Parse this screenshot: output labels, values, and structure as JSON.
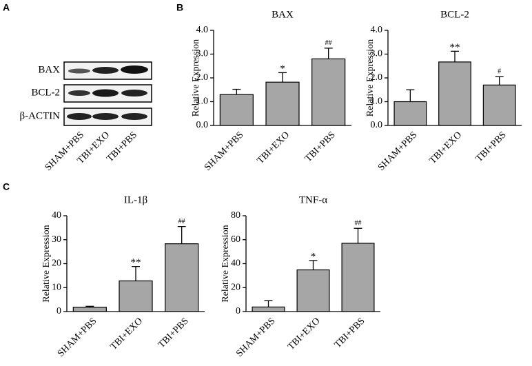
{
  "panels": [
    "A",
    "B",
    "C"
  ],
  "blot": {
    "rows": [
      "BAX",
      "BCL-2",
      "β-ACTIN"
    ],
    "lanes": [
      "SHAM+PBS",
      "TBI+EXO",
      "TBI+PBS"
    ]
  },
  "chart_data": [
    {
      "type": "bar",
      "title": "BAX",
      "y_label": "Relative Expression",
      "categories": [
        "SHAM+PBS",
        "TBI+EXO",
        "TBI+PBS"
      ],
      "values": [
        1.3,
        1.82,
        2.8
      ],
      "errors": [
        0.22,
        0.4,
        0.45
      ],
      "value_annotations": [
        null,
        "*",
        "##"
      ],
      "color": "#a6a6a6",
      "ylim": [
        0,
        4
      ],
      "yticks": [
        {
          "value": 0,
          "label": "0.0"
        },
        {
          "value": 1,
          "label": "1.0"
        },
        {
          "value": 2,
          "label": "2.0"
        },
        {
          "value": 3,
          "label": "3.0"
        },
        {
          "value": 4,
          "label": "4.0"
        }
      ]
    },
    {
      "type": "bar",
      "title": "BCL-2",
      "y_label": "Relative Expression",
      "categories": [
        "SHAM+PBS",
        "TBI+EXO",
        "TBI+PBS"
      ],
      "values": [
        1.0,
        2.67,
        1.7
      ],
      "errors": [
        0.5,
        0.45,
        0.35
      ],
      "value_annotations": [
        null,
        "**",
        "#"
      ],
      "color": "#a6a6a6",
      "ylim": [
        0,
        4
      ],
      "yticks": [
        {
          "value": 0,
          "label": "0.0"
        },
        {
          "value": 1,
          "label": "1.0"
        },
        {
          "value": 2,
          "label": "2.0"
        },
        {
          "value": 3,
          "label": "3.0"
        },
        {
          "value": 4,
          "label": "4.0"
        }
      ]
    },
    {
      "type": "bar",
      "title": "IL-1β",
      "y_label": "Relative Expression",
      "categories": [
        "SHAM+PBS",
        "TBI+EXO",
        "TBI+PBS"
      ],
      "values": [
        1.8,
        12.8,
        28.3
      ],
      "errors": [
        0.4,
        6,
        7.2
      ],
      "value_annotations": [
        null,
        "**",
        "##"
      ],
      "color": "#a6a6a6",
      "ylim": [
        0,
        40
      ],
      "yticks": [
        0,
        10,
        20,
        30,
        40
      ]
    },
    {
      "type": "bar",
      "title": "TNF-α",
      "y_label": "Relative Expression",
      "categories": [
        "SHAM+PBS",
        "TBI+EXO",
        "TBI+PBS"
      ],
      "values": [
        3.8,
        34.8,
        57
      ],
      "errors": [
        5.3,
        7.8,
        12.5
      ],
      "value_annotations": [
        null,
        "*",
        "##"
      ],
      "color": "#a6a6a6",
      "ylim": [
        0,
        80
      ],
      "yticks": [
        0,
        20,
        40,
        60,
        80
      ]
    }
  ]
}
